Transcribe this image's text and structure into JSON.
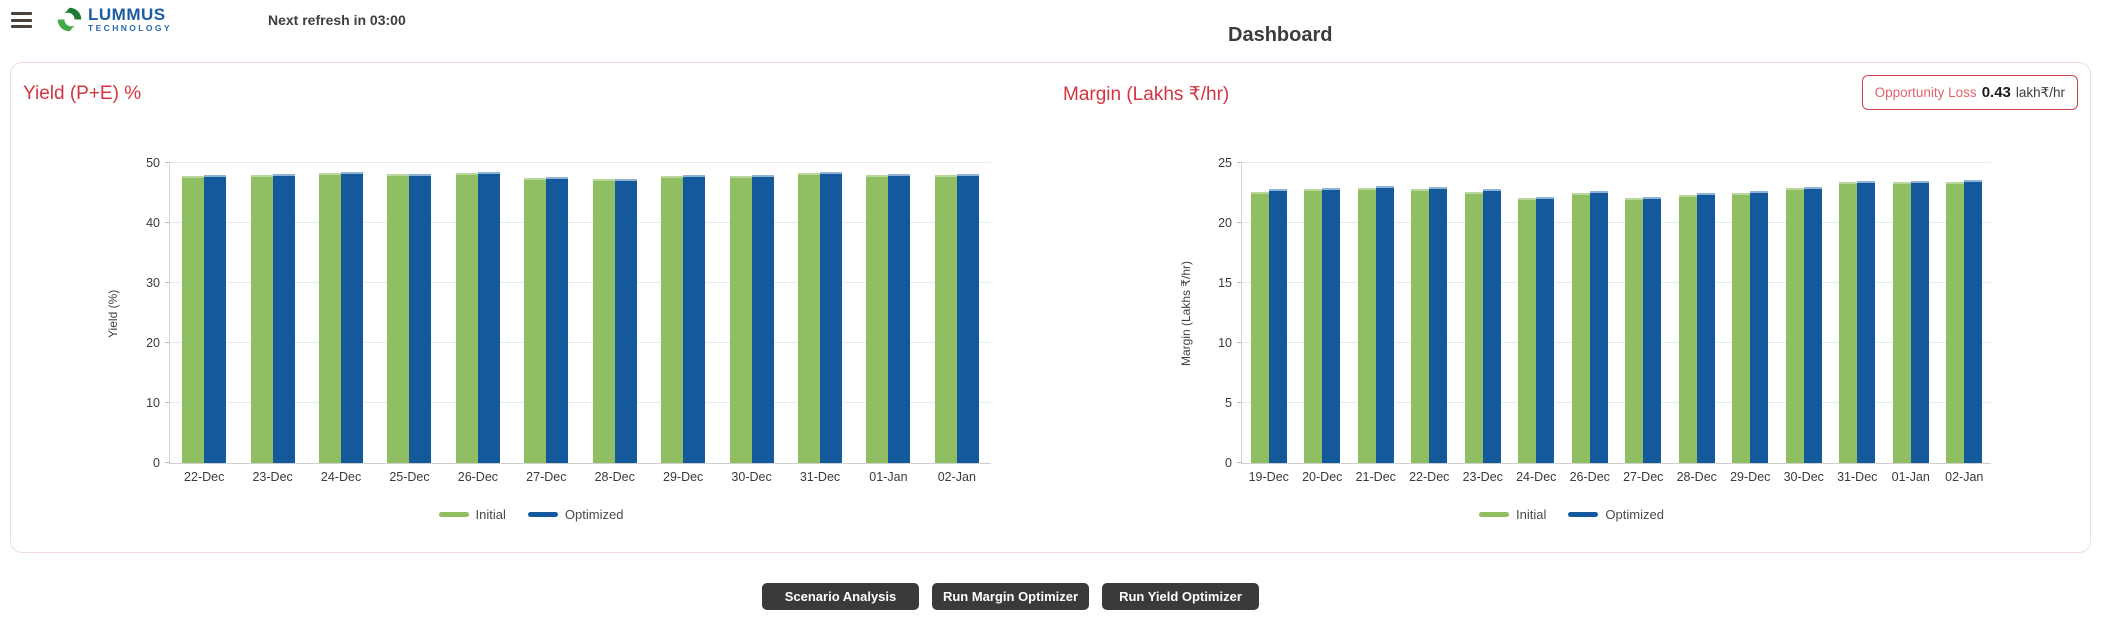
{
  "header": {
    "logo_line1": "LUMMUS",
    "logo_line2": "TECHNOLOGY",
    "refresh_text": "Next refresh in 03:00",
    "title": "Dashboard"
  },
  "opportunity_loss": {
    "label": "Opportunity Loss",
    "value": "0.43",
    "unit": "lakh₹/hr"
  },
  "buttons": {
    "scenario": "Scenario Analysis",
    "run_margin": "Run Margin Optimizer",
    "run_yield": "Run Yield Optimizer"
  },
  "colors": {
    "title_red": "#d23440",
    "badge_border": "#d2454e",
    "initial_green": "#8fbe63",
    "optimized_blue": "#15599d",
    "button_dark": "#3b393a",
    "logo_blue": "#1d5ca3",
    "logo_green_dark": "#1d7a33",
    "logo_green_light": "#45a847"
  },
  "chart_data": [
    {
      "type": "bar",
      "title": "Yield (P+E) %",
      "ylabel": "Yield (%)",
      "ylim": [
        0,
        50
      ],
      "ytick_step": 10,
      "grid": true,
      "legend_position": "bottom",
      "categories": [
        "22-Dec",
        "23-Dec",
        "24-Dec",
        "25-Dec",
        "26-Dec",
        "27-Dec",
        "28-Dec",
        "29-Dec",
        "30-Dec",
        "31-Dec",
        "01-Jan",
        "02-Jan"
      ],
      "series": [
        {
          "name": "Initial",
          "color": "#8fbe63",
          "border_color": "#b9d79a",
          "values": [
            47.9,
            48.0,
            48.3,
            48.1,
            48.4,
            47.5,
            47.3,
            47.9,
            47.9,
            48.4,
            48.0,
            48.0
          ]
        },
        {
          "name": "Optimized",
          "color": "#15599d",
          "border_color": "#8fb3d6",
          "values": [
            48.0,
            48.1,
            48.5,
            48.2,
            48.5,
            47.6,
            47.4,
            48.0,
            48.0,
            48.5,
            48.2,
            48.2
          ]
        }
      ]
    },
    {
      "type": "bar",
      "title": "Margin (Lakhs ₹/hr)",
      "ylabel": "Margin (Lakhs ₹/hr)",
      "ylim": [
        0,
        25
      ],
      "ytick_step": 5,
      "grid": true,
      "legend_position": "bottom",
      "categories": [
        "19-Dec",
        "20-Dec",
        "21-Dec",
        "22-Dec",
        "23-Dec",
        "24-Dec",
        "26-Dec",
        "27-Dec",
        "28-Dec",
        "29-Dec",
        "30-Dec",
        "31-Dec",
        "01-Jan",
        "02-Jan"
      ],
      "series": [
        {
          "name": "Initial",
          "color": "#8fbe63",
          "border_color": "#b9d79a",
          "values": [
            22.6,
            22.8,
            22.9,
            22.8,
            22.6,
            22.1,
            22.5,
            22.1,
            22.3,
            22.5,
            22.9,
            23.4,
            23.4,
            23.4
          ]
        },
        {
          "name": "Optimized",
          "color": "#15599d",
          "border_color": "#8fb3d6",
          "values": [
            22.8,
            22.9,
            23.1,
            23.0,
            22.8,
            22.2,
            22.7,
            22.2,
            22.5,
            22.7,
            23.0,
            23.5,
            23.5,
            23.6
          ]
        }
      ]
    }
  ]
}
